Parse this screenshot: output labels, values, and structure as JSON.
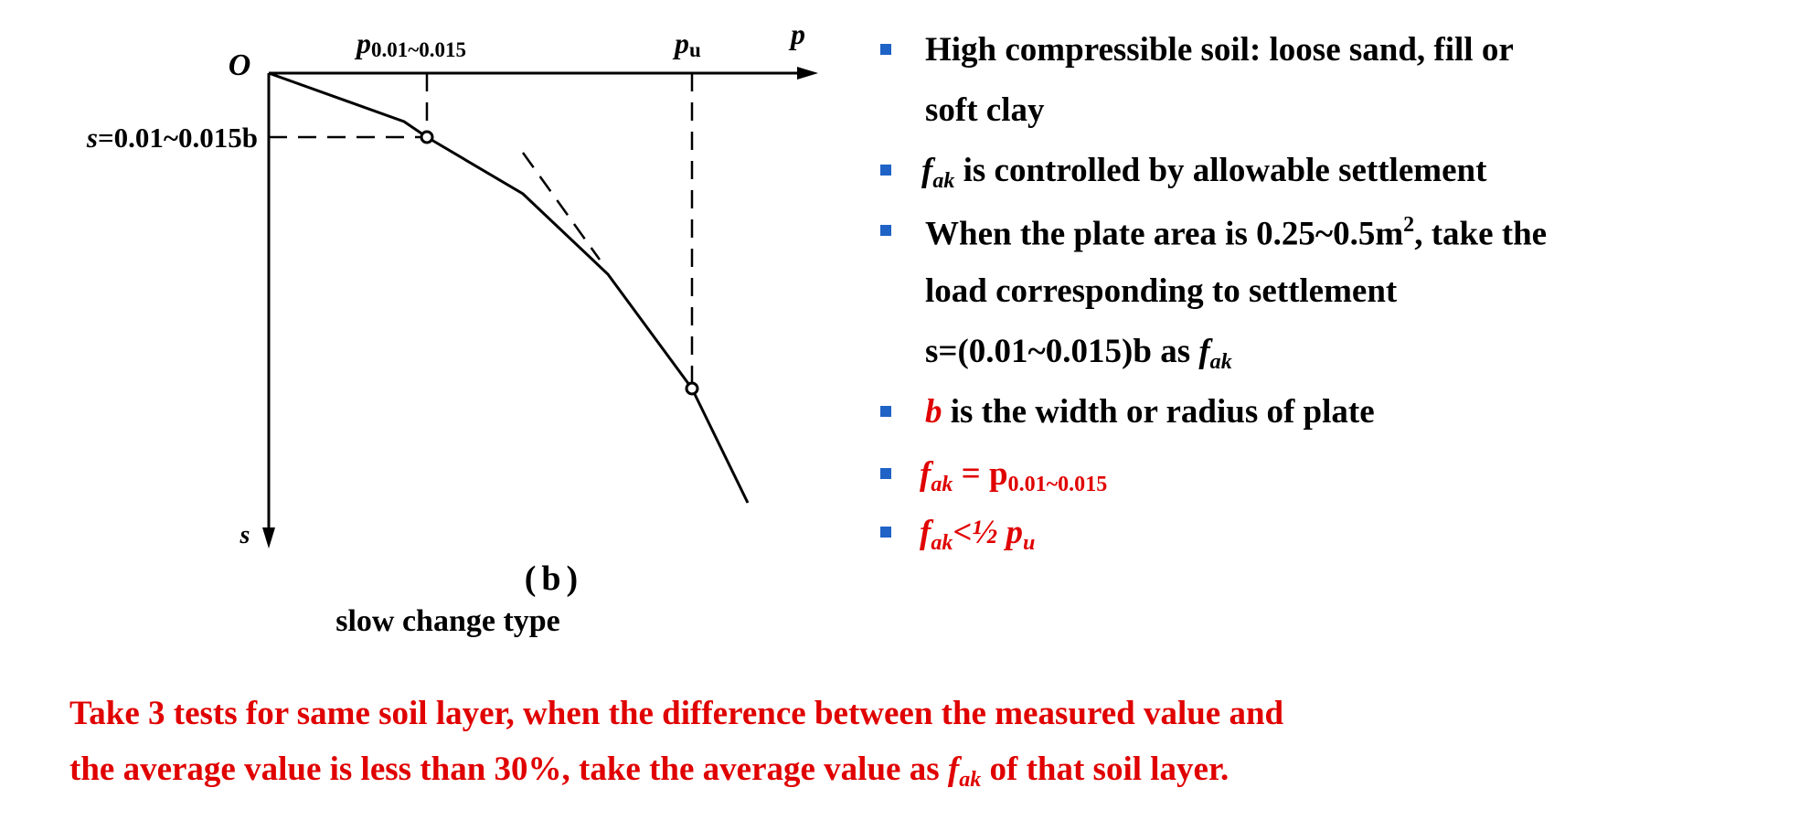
{
  "diagram": {
    "origin": "O",
    "x_axis": "p",
    "y_axis": "s",
    "p_small": [
      "p",
      "0.01~0.015"
    ],
    "p_ultimate": [
      "p",
      "u"
    ],
    "settlement": [
      "s",
      "=0.01~0.015b"
    ],
    "panel": "(b)",
    "caption": "slow change type"
  },
  "bullets": [
    [
      "High compressible soil: loose sand, fill or",
      "soft clay"
    ],
    [
      "f",
      "ak",
      " is controlled by allowable settlement"
    ],
    [
      "When the plate area is 0.25~0.5m",
      "2",
      ", take the",
      "load corresponding to settlement",
      "s=(0.01~0.015)b as ",
      "f",
      "ak"
    ],
    [
      "b",
      " is the width or radius of plate"
    ],
    [
      "f",
      "ak",
      " = p",
      "0.01~0.015"
    ],
    [
      "f",
      "ak",
      "<½ ",
      "p",
      "u"
    ]
  ],
  "note": [
    "Take 3 tests for same soil layer, when the difference between the measured value and",
    "the average value is less than 30%, take the average value as ",
    "f",
    "ak",
    " of that soil layer."
  ]
}
